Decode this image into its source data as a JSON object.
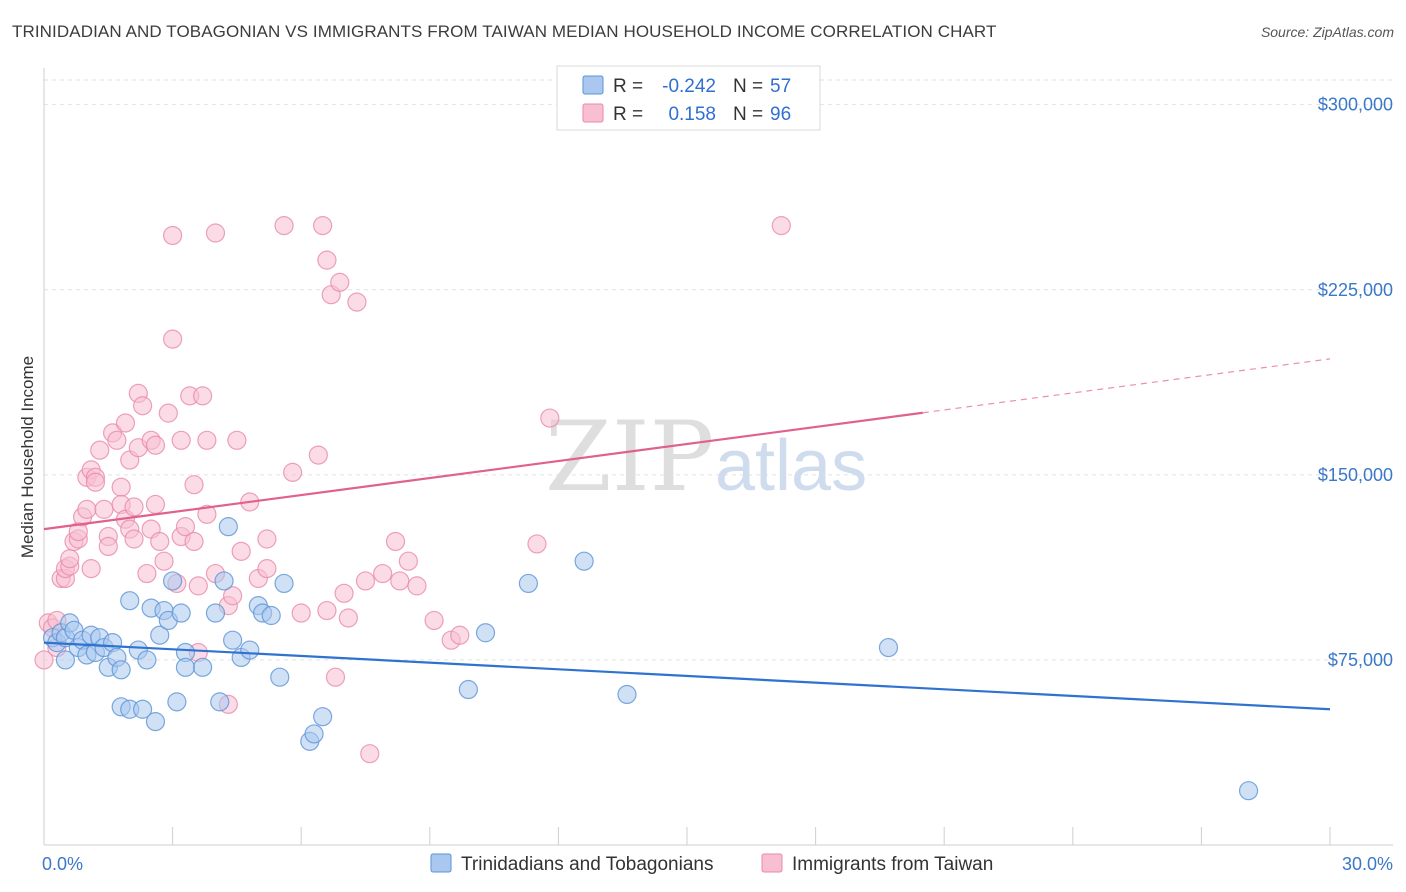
{
  "title": "TRINIDADIAN AND TOBAGONIAN VS IMMIGRANTS FROM TAIWAN MEDIAN HOUSEHOLD INCOME CORRELATION CHART",
  "source": "Source: ZipAtlas.com",
  "watermark": {
    "zip": "ZIP",
    "atlas": "atlas"
  },
  "legend": {
    "r_label": "R =",
    "n_label": "N =",
    "rows": [
      {
        "r": "-0.242",
        "n": "57"
      },
      {
        "r": "0.158",
        "n": "96"
      }
    ]
  },
  "colors": {
    "blue": "#5b93d6",
    "blue_fill": "#aac8ef",
    "blue_line": "#2f72d0",
    "pink": "#e889a9",
    "pink_fill": "#f7bfd1",
    "pink_line": "#e0618c",
    "tick_label": "#3a78c9"
  },
  "chart_data": {
    "type": "scatter",
    "xlabel": "",
    "ylabel": "Median Household Income",
    "xlim": [
      0,
      30
    ],
    "ylim": [
      0,
      310000
    ],
    "x_tick_labels": [
      "0.0%",
      "30.0%"
    ],
    "y_ticks": [
      75000,
      150000,
      225000,
      300000
    ],
    "y_tick_labels": [
      "$75,000",
      "$150,000",
      "$225,000",
      "$300,000"
    ],
    "grid": true,
    "series": [
      {
        "name": "Trinidadians and Tobagonians",
        "r": -0.242,
        "n": 57,
        "trend": {
          "x0": 0,
          "y0": 82000,
          "x1": 30,
          "y1": 55000,
          "solid_until": 30
        },
        "points": [
          [
            0.2,
            84000
          ],
          [
            0.3,
            82000
          ],
          [
            0.4,
            86000
          ],
          [
            0.5,
            84000
          ],
          [
            0.5,
            75000
          ],
          [
            0.6,
            90000
          ],
          [
            0.7,
            87000
          ],
          [
            0.8,
            80000
          ],
          [
            0.9,
            83000
          ],
          [
            1.0,
            77000
          ],
          [
            1.1,
            85000
          ],
          [
            1.2,
            78000
          ],
          [
            1.3,
            84000
          ],
          [
            1.4,
            80000
          ],
          [
            1.5,
            72000
          ],
          [
            1.6,
            82000
          ],
          [
            1.7,
            76000
          ],
          [
            1.8,
            71000
          ],
          [
            1.8,
            56000
          ],
          [
            2.0,
            55000
          ],
          [
            2.0,
            99000
          ],
          [
            2.2,
            79000
          ],
          [
            2.3,
            55000
          ],
          [
            2.4,
            75000
          ],
          [
            2.5,
            96000
          ],
          [
            2.6,
            50000
          ],
          [
            2.7,
            85000
          ],
          [
            2.8,
            95000
          ],
          [
            2.9,
            91000
          ],
          [
            3.0,
            107000
          ],
          [
            3.1,
            58000
          ],
          [
            3.2,
            94000
          ],
          [
            3.3,
            78000
          ],
          [
            3.3,
            72000
          ],
          [
            3.7,
            72000
          ],
          [
            4.0,
            94000
          ],
          [
            4.1,
            58000
          ],
          [
            4.2,
            107000
          ],
          [
            4.3,
            129000
          ],
          [
            4.4,
            83000
          ],
          [
            4.6,
            76000
          ],
          [
            4.8,
            79000
          ],
          [
            5.0,
            97000
          ],
          [
            5.1,
            94000
          ],
          [
            5.3,
            93000
          ],
          [
            5.5,
            68000
          ],
          [
            5.6,
            106000
          ],
          [
            6.2,
            42000
          ],
          [
            6.3,
            45000
          ],
          [
            6.5,
            52000
          ],
          [
            9.9,
            63000
          ],
          [
            10.3,
            86000
          ],
          [
            11.3,
            106000
          ],
          [
            12.6,
            115000
          ],
          [
            13.6,
            61000
          ],
          [
            19.7,
            80000
          ],
          [
            28.1,
            22000
          ]
        ]
      },
      {
        "name": "Immigrants from Taiwan",
        "r": 0.158,
        "n": 96,
        "trend": {
          "x0": 0,
          "y0": 128000,
          "x1": 30,
          "y1": 197000,
          "solid_until": 20.5
        },
        "points": [
          [
            0.0,
            75000
          ],
          [
            0.1,
            90000
          ],
          [
            0.2,
            88000
          ],
          [
            0.3,
            80000
          ],
          [
            0.3,
            91000
          ],
          [
            0.4,
            108000
          ],
          [
            0.5,
            108000
          ],
          [
            0.5,
            112000
          ],
          [
            0.6,
            113000
          ],
          [
            0.6,
            116000
          ],
          [
            0.7,
            123000
          ],
          [
            0.8,
            124000
          ],
          [
            0.8,
            127000
          ],
          [
            0.9,
            133000
          ],
          [
            1.0,
            136000
          ],
          [
            1.0,
            149000
          ],
          [
            1.1,
            152000
          ],
          [
            1.1,
            112000
          ],
          [
            1.2,
            149000
          ],
          [
            1.2,
            147000
          ],
          [
            1.3,
            160000
          ],
          [
            1.4,
            136000
          ],
          [
            1.5,
            125000
          ],
          [
            1.5,
            121000
          ],
          [
            1.6,
            167000
          ],
          [
            1.7,
            164000
          ],
          [
            1.8,
            145000
          ],
          [
            1.8,
            138000
          ],
          [
            1.9,
            171000
          ],
          [
            1.9,
            132000
          ],
          [
            2.0,
            156000
          ],
          [
            2.0,
            128000
          ],
          [
            2.1,
            137000
          ],
          [
            2.1,
            124000
          ],
          [
            2.2,
            161000
          ],
          [
            2.2,
            183000
          ],
          [
            2.3,
            178000
          ],
          [
            2.4,
            110000
          ],
          [
            2.5,
            164000
          ],
          [
            2.5,
            128000
          ],
          [
            2.6,
            162000
          ],
          [
            2.6,
            138000
          ],
          [
            2.7,
            123000
          ],
          [
            2.8,
            115000
          ],
          [
            2.9,
            175000
          ],
          [
            3.0,
            205000
          ],
          [
            3.0,
            247000
          ],
          [
            3.1,
            106000
          ],
          [
            3.2,
            125000
          ],
          [
            3.2,
            164000
          ],
          [
            3.3,
            129000
          ],
          [
            3.4,
            182000
          ],
          [
            3.5,
            146000
          ],
          [
            3.5,
            123000
          ],
          [
            3.6,
            105000
          ],
          [
            3.6,
            78000
          ],
          [
            3.7,
            182000
          ],
          [
            3.8,
            164000
          ],
          [
            3.8,
            134000
          ],
          [
            4.0,
            248000
          ],
          [
            4.0,
            110000
          ],
          [
            4.3,
            97000
          ],
          [
            4.3,
            57000
          ],
          [
            4.4,
            101000
          ],
          [
            4.5,
            164000
          ],
          [
            4.6,
            119000
          ],
          [
            4.8,
            139000
          ],
          [
            5.0,
            108000
          ],
          [
            5.2,
            124000
          ],
          [
            5.2,
            112000
          ],
          [
            5.6,
            251000
          ],
          [
            5.8,
            151000
          ],
          [
            6.0,
            94000
          ],
          [
            6.4,
            158000
          ],
          [
            6.5,
            251000
          ],
          [
            6.6,
            95000
          ],
          [
            6.6,
            237000
          ],
          [
            6.7,
            223000
          ],
          [
            6.8,
            68000
          ],
          [
            6.9,
            228000
          ],
          [
            7.0,
            102000
          ],
          [
            7.1,
            92000
          ],
          [
            7.3,
            220000
          ],
          [
            7.5,
            107000
          ],
          [
            7.6,
            37000
          ],
          [
            7.9,
            110000
          ],
          [
            8.2,
            123000
          ],
          [
            8.3,
            107000
          ],
          [
            8.5,
            115000
          ],
          [
            8.7,
            105000
          ],
          [
            9.1,
            91000
          ],
          [
            9.5,
            83000
          ],
          [
            9.7,
            85000
          ],
          [
            11.5,
            122000
          ],
          [
            11.8,
            173000
          ],
          [
            17.2,
            251000
          ]
        ]
      }
    ],
    "legend_position": "top-center",
    "bottom_legend": [
      "Trinidadians and Tobagonians",
      "Immigrants from Taiwan"
    ]
  }
}
